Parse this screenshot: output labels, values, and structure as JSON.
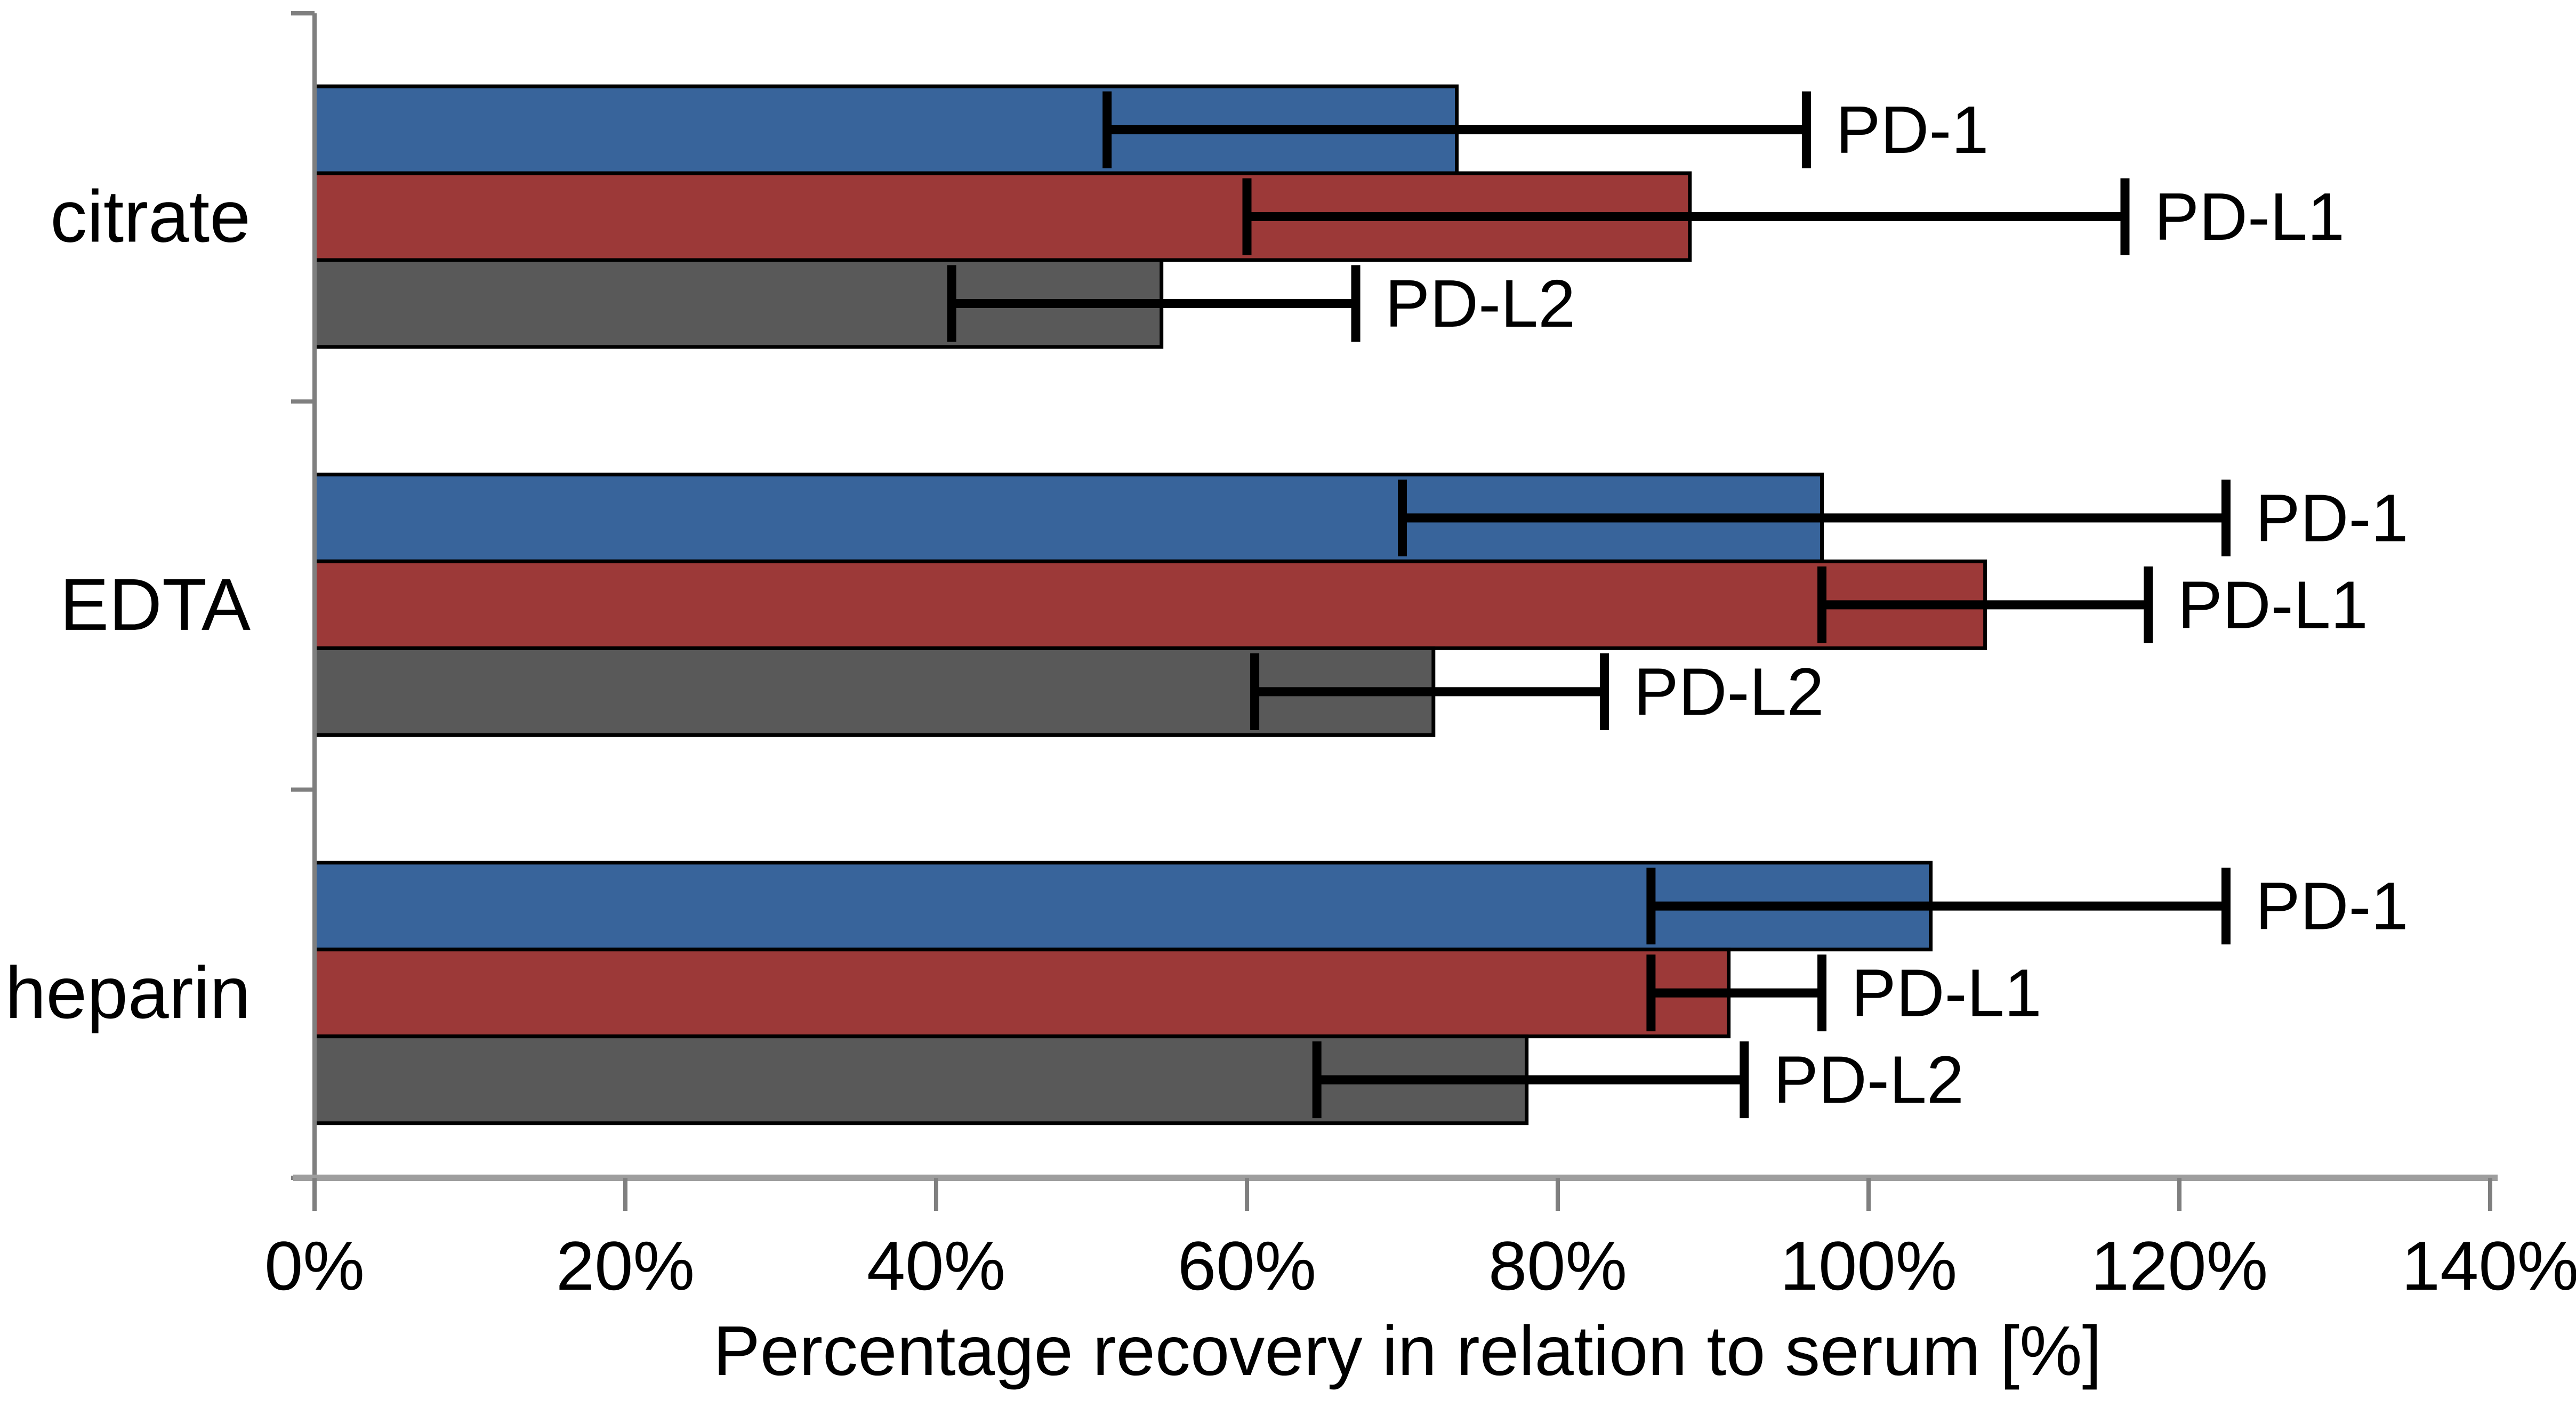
{
  "chart_data": {
    "type": "bar",
    "orientation": "horizontal",
    "title": "",
    "xlabel": "Percentage recovery in relation to serum [%]",
    "ylabel": "",
    "categories": [
      "citrate",
      "EDTA",
      "heparin"
    ],
    "x_ticks": [
      "0%",
      "20%",
      "40%",
      "60%",
      "80%",
      "100%",
      "120%",
      "140%"
    ],
    "x_tick_values": [
      0,
      20,
      40,
      60,
      80,
      100,
      120,
      140
    ],
    "xlim": [
      0,
      140
    ],
    "grid": false,
    "legend_position": "bar-end-labels",
    "series": [
      {
        "name": "PD-1",
        "color": "#38649B",
        "values": [
          73.5,
          97,
          104
        ],
        "err_low": [
          51,
          70,
          86
        ],
        "err_high": [
          96,
          123,
          123
        ]
      },
      {
        "name": "PD-L1",
        "color": "#9C3938",
        "values": [
          88.5,
          107.5,
          91
        ],
        "err_low": [
          60,
          97,
          86
        ],
        "err_high": [
          116.5,
          118,
          97
        ]
      },
      {
        "name": "PD-L2",
        "color": "#595959",
        "values": [
          54.5,
          72,
          78
        ],
        "err_low": [
          41,
          60.5,
          64.5
        ],
        "err_high": [
          67,
          83,
          92
        ]
      }
    ],
    "colors": {
      "bar_border": "#000000",
      "error_bar": "#000000",
      "axis_line": "#9E9E9E",
      "tick_line": "#7F7F7F",
      "text": "#000000",
      "background": "#FFFFFF"
    }
  }
}
